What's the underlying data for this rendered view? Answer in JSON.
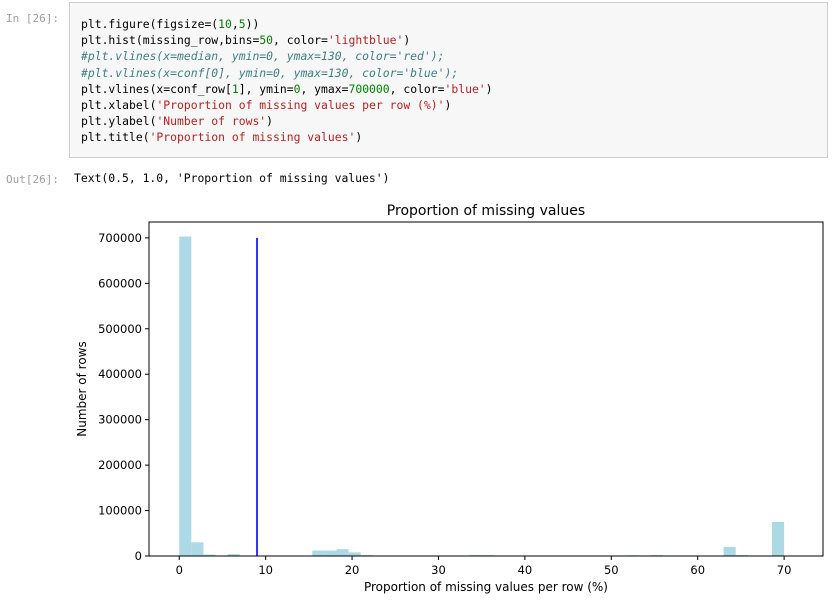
{
  "cell_in": {
    "prompt": "In [26]:",
    "code_lines": [
      [
        {
          "t": "plt.figure(figsize=("
        },
        {
          "t": "10",
          "c": "tok-num"
        },
        {
          "t": ","
        },
        {
          "t": "5",
          "c": "tok-num"
        },
        {
          "t": "))"
        }
      ],
      [
        {
          "t": "plt.hist(missing_row,bins="
        },
        {
          "t": "50",
          "c": "tok-num"
        },
        {
          "t": ", color="
        },
        {
          "t": "'lightblue'",
          "c": "tok-str"
        },
        {
          "t": ")"
        }
      ],
      [
        {
          "t": "#plt.vlines(x=median, ymin=0, ymax=130, color='red');",
          "c": "tok-cmt"
        }
      ],
      [
        {
          "t": "#plt.vlines(x=conf[0], ymin=0, ymax=130, color='blue');",
          "c": "tok-cmt"
        }
      ],
      [
        {
          "t": "plt.vlines(x=conf_row["
        },
        {
          "t": "1",
          "c": "tok-num"
        },
        {
          "t": "], ymin="
        },
        {
          "t": "0",
          "c": "tok-num"
        },
        {
          "t": ", ymax="
        },
        {
          "t": "700000",
          "c": "tok-num"
        },
        {
          "t": ", color="
        },
        {
          "t": "'blue'",
          "c": "tok-str"
        },
        {
          "t": ")"
        }
      ],
      [
        {
          "t": "plt.xlabel("
        },
        {
          "t": "'Proportion of missing values per row (%)'",
          "c": "tok-str"
        },
        {
          "t": ")"
        }
      ],
      [
        {
          "t": "plt.ylabel("
        },
        {
          "t": "'Number of rows'",
          "c": "tok-str"
        },
        {
          "t": ")"
        }
      ],
      [
        {
          "t": "plt.title("
        },
        {
          "t": "'Proportion of missing values'",
          "c": "tok-str"
        },
        {
          "t": ")"
        }
      ]
    ]
  },
  "cell_out": {
    "prompt": "Out[26]:",
    "text": "Text(0.5, 1.0, 'Proportion of missing values')"
  },
  "chart_data": {
    "type": "bar",
    "title": "Proportion of missing values",
    "xlabel": "Proportion of missing values per row (%)",
    "ylabel": "Number of rows",
    "xlim": [
      -3.5,
      74.5
    ],
    "ylim": [
      0,
      735000
    ],
    "xticks": [
      0,
      10,
      20,
      30,
      40,
      50,
      60,
      70
    ],
    "yticks": [
      0,
      100000,
      200000,
      300000,
      400000,
      500000,
      600000,
      700000
    ],
    "bin_width": 1.4,
    "bins": [
      {
        "x": 0,
        "value": 703000
      },
      {
        "x": 1.4,
        "value": 30000
      },
      {
        "x": 2.8,
        "value": 3000
      },
      {
        "x": 5.6,
        "value": 4000
      },
      {
        "x": 15.4,
        "value": 12000
      },
      {
        "x": 16.8,
        "value": 12000
      },
      {
        "x": 18.2,
        "value": 15000
      },
      {
        "x": 19.6,
        "value": 8000
      },
      {
        "x": 21.0,
        "value": 2000
      },
      {
        "x": 33.6,
        "value": 2000
      },
      {
        "x": 35.0,
        "value": 2000
      },
      {
        "x": 51.8,
        "value": 1500
      },
      {
        "x": 54.6,
        "value": 2000
      },
      {
        "x": 63.0,
        "value": 20000
      },
      {
        "x": 64.4,
        "value": 2000
      },
      {
        "x": 68.6,
        "value": 75000
      }
    ],
    "vline": {
      "x": 9,
      "ymin": 0,
      "ymax": 700000
    },
    "colors": {
      "bars": "#add8e6",
      "vline": "#0000ff",
      "axis": "#000000"
    },
    "grid": false
  }
}
